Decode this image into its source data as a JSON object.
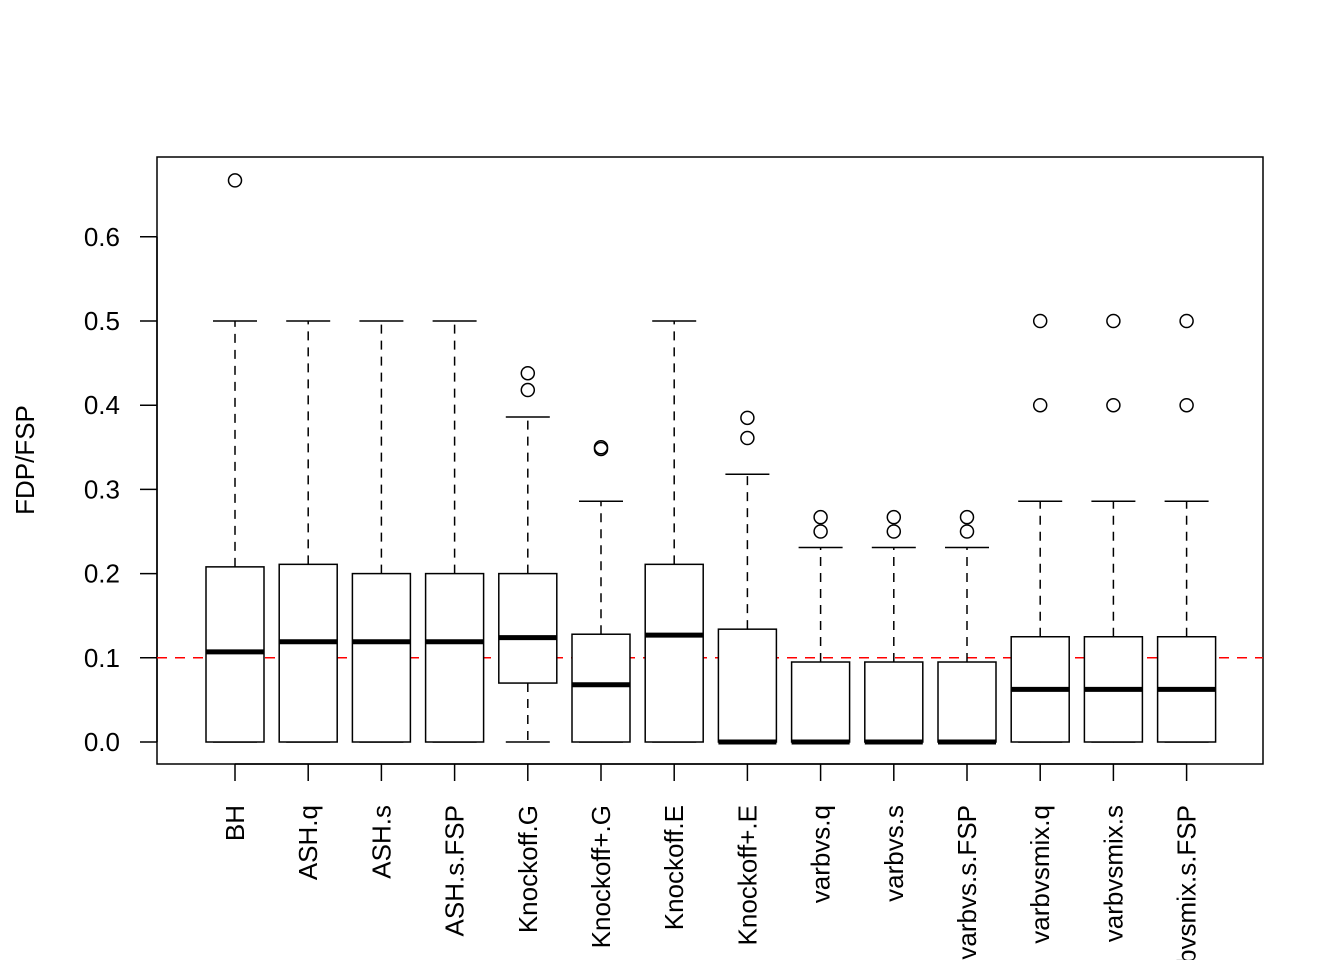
{
  "chart_data": {
    "type": "boxplot",
    "title": "",
    "xlabel": "",
    "ylabel": "FDP/FSP",
    "ylim": [
      -0.025,
      0.69
    ],
    "yticks": [
      0.0,
      0.1,
      0.2,
      0.3,
      0.4,
      0.5,
      0.6
    ],
    "ytick_labels": [
      "0.0",
      "0.1",
      "0.2",
      "0.3",
      "0.4",
      "0.5",
      "0.6"
    ],
    "grid": false,
    "reference_line": {
      "y": 0.1,
      "color": "#ff0000",
      "style": "dashed"
    },
    "categories": [
      "BH",
      "ASH.q",
      "ASH.s",
      "ASH.s.FSP",
      "Knockoff.G",
      "Knockoff+.G",
      "Knockoff.E",
      "Knockoff+.E",
      "varbvs.q",
      "varbvs.s",
      "varbvs.s.FSP",
      "varbvsmix.q",
      "varbvsmix.s",
      "varbvsmix.s.FSP"
    ],
    "boxes": [
      {
        "whisker_low": 0,
        "q1": 0,
        "median": 0.107,
        "q3": 0.208,
        "whisker_high": 0.5,
        "outliers": [
          0.667
        ]
      },
      {
        "whisker_low": 0,
        "q1": 0,
        "median": 0.119,
        "q3": 0.211,
        "whisker_high": 0.5,
        "outliers": []
      },
      {
        "whisker_low": 0,
        "q1": 0,
        "median": 0.119,
        "q3": 0.2,
        "whisker_high": 0.5,
        "outliers": []
      },
      {
        "whisker_low": 0,
        "q1": 0,
        "median": 0.119,
        "q3": 0.2,
        "whisker_high": 0.5,
        "outliers": []
      },
      {
        "whisker_low": 0,
        "q1": 0.07,
        "median": 0.124,
        "q3": 0.2,
        "whisker_high": 0.386,
        "outliers": [
          0.418,
          0.438
        ]
      },
      {
        "whisker_low": 0,
        "q1": 0,
        "median": 0.068,
        "q3": 0.128,
        "whisker_high": 0.286,
        "outliers": [
          0.348,
          0.35
        ]
      },
      {
        "whisker_low": 0,
        "q1": 0,
        "median": 0.127,
        "q3": 0.211,
        "whisker_high": 0.5,
        "outliers": []
      },
      {
        "whisker_low": 0,
        "q1": 0,
        "median": 0,
        "q3": 0.134,
        "whisker_high": 0.318,
        "outliers": [
          0.361,
          0.385
        ]
      },
      {
        "whisker_low": 0,
        "q1": 0,
        "median": 0,
        "q3": 0.095,
        "whisker_high": 0.231,
        "outliers": [
          0.25,
          0.267
        ]
      },
      {
        "whisker_low": 0,
        "q1": 0,
        "median": 0,
        "q3": 0.095,
        "whisker_high": 0.231,
        "outliers": [
          0.25,
          0.267
        ]
      },
      {
        "whisker_low": 0,
        "q1": 0,
        "median": 0,
        "q3": 0.095,
        "whisker_high": 0.231,
        "outliers": [
          0.25,
          0.267
        ]
      },
      {
        "whisker_low": 0,
        "q1": 0,
        "median": 0.0625,
        "q3": 0.125,
        "whisker_high": 0.286,
        "outliers": [
          0.4,
          0.5
        ]
      },
      {
        "whisker_low": 0,
        "q1": 0,
        "median": 0.0625,
        "q3": 0.125,
        "whisker_high": 0.286,
        "outliers": [
          0.4,
          0.5
        ]
      },
      {
        "whisker_low": 0,
        "q1": 0,
        "median": 0.0625,
        "q3": 0.125,
        "whisker_high": 0.286,
        "outliers": [
          0.4,
          0.5
        ]
      }
    ]
  }
}
